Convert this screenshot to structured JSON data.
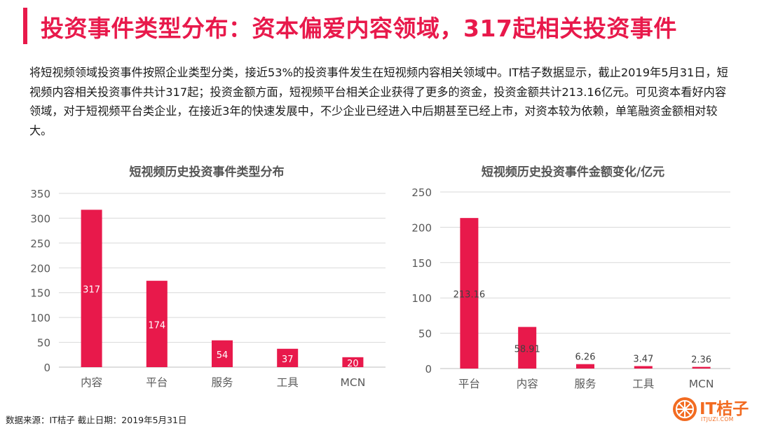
{
  "header": {
    "title": "投资事件类型分布：资本偏爱内容领域，317起相关投资事件",
    "accent_color": "#e8194b"
  },
  "summary": "将短视频领域投资事件按照企业类型分类，接近53%的投资事件发生在短视频内容相关领域中。IT桔子数据显示，截止2019年5月31日，短视频内容相关投资事件共计317起；投资金额方面，短视频平台相关企业获得了更多的资金，投资金额共计213.16亿元。可见资本看好内容领域，对于短视频平台类企业，在接近3年的快速发展中，不少企业已经进入中后期甚至已经上市，对资本较为依赖，单笔融资金额相对较大。",
  "footer": {
    "source": "数据来源：IT桔子 截止日期：2019年5月31日",
    "logo_text": "IT桔子",
    "logo_sub": "ITJUZI.COM",
    "logo_color": "#f26b21",
    "logo_icon": "orange-slice-icon"
  },
  "chart_data": [
    {
      "type": "bar",
      "title": "短视频历史投资事件类型分布",
      "categories": [
        "内容",
        "平台",
        "服务",
        "工具",
        "MCN"
      ],
      "values": [
        317,
        174,
        54,
        37,
        20
      ],
      "data_labels": [
        "317",
        "174",
        "54",
        "37",
        "20"
      ],
      "ylim": [
        0,
        350
      ],
      "yticks": [
        0,
        50,
        100,
        150,
        200,
        250,
        300,
        350
      ],
      "grid": true,
      "bar_color": "#e8194b",
      "label_position": "inside"
    },
    {
      "type": "bar",
      "title": "短视频历史投资事件金额变化/亿元",
      "categories": [
        "平台",
        "内容",
        "服务",
        "工具",
        "MCN"
      ],
      "values": [
        213.16,
        58.91,
        6.26,
        3.47,
        2.36
      ],
      "data_labels": [
        "213.16",
        "58.91",
        "6.26",
        "3.47",
        "2.36"
      ],
      "ylim": [
        0,
        250
      ],
      "yticks": [
        0,
        50,
        100,
        150,
        200,
        250
      ],
      "grid": true,
      "bar_color": "#e8194b",
      "label_position": "mixed"
    }
  ]
}
